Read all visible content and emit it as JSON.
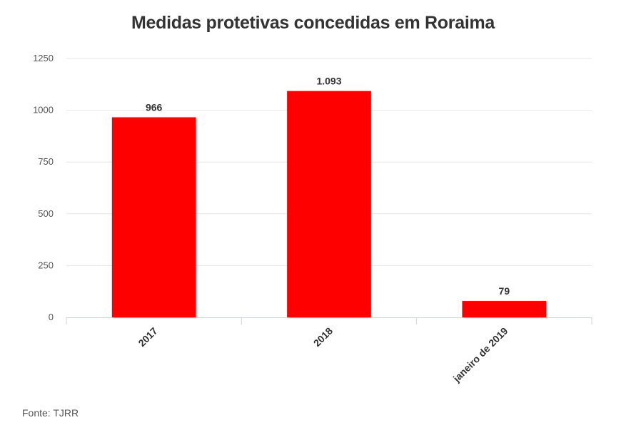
{
  "chart_data": {
    "type": "bar",
    "title": "Medidas protetivas concedidas em Roraima",
    "categories": [
      "2017",
      "2018",
      "janeiro de 2019"
    ],
    "values": [
      966,
      1093,
      79
    ],
    "data_labels": [
      "966",
      "1.093",
      "79"
    ],
    "yticks": [
      0,
      250,
      500,
      750,
      1000,
      1250
    ],
    "ylim": [
      0,
      1250
    ],
    "xlabel": "",
    "ylabel": "",
    "grid": true,
    "bar_color": "#ff0000",
    "grid_color": "#e6e6e6",
    "axis_color": "#ccd6eb"
  },
  "source": "Fonte: TJRR"
}
